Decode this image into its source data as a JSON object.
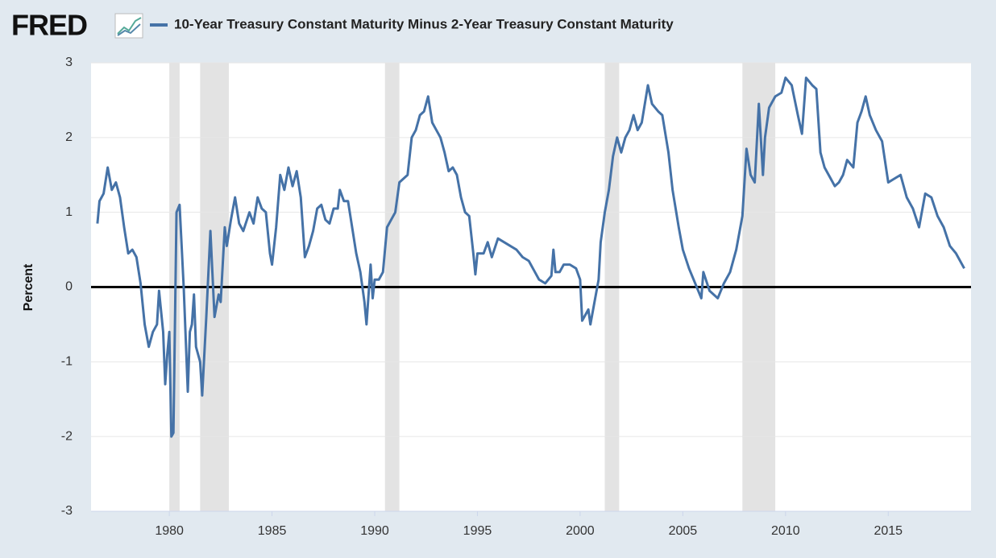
{
  "chart_data": {
    "type": "line",
    "logo": "FRED",
    "y_label": "Percent",
    "x": [
      1976.5,
      1976.6,
      1976.8,
      1977.0,
      1977.2,
      1977.4,
      1977.6,
      1977.8,
      1978.0,
      1978.2,
      1978.4,
      1978.6,
      1978.8,
      1979.0,
      1979.2,
      1979.4,
      1979.5,
      1979.7,
      1979.8,
      1979.9,
      1980.0,
      1980.1,
      1980.2,
      1980.35,
      1980.5,
      1980.7,
      1980.9,
      1981.0,
      1981.1,
      1981.2,
      1981.3,
      1981.5,
      1981.6,
      1981.8,
      1982.0,
      1982.2,
      1982.4,
      1982.5,
      1982.7,
      1982.8,
      1983.0,
      1983.2,
      1983.4,
      1983.6,
      1983.9,
      1984.1,
      1984.3,
      1984.5,
      1984.7,
      1984.9,
      1985.0,
      1985.2,
      1985.4,
      1985.6,
      1985.8,
      1986.0,
      1986.2,
      1986.4,
      1986.6,
      1986.8,
      1987.0,
      1987.2,
      1987.4,
      1987.6,
      1987.8,
      1988.0,
      1988.2,
      1988.3,
      1988.5,
      1988.7,
      1988.9,
      1989.1,
      1989.3,
      1989.5,
      1989.6,
      1989.8,
      1989.9,
      1990.0,
      1990.2,
      1990.4,
      1990.6,
      1990.8,
      1991.0,
      1991.2,
      1991.4,
      1991.6,
      1991.8,
      1992.0,
      1992.2,
      1992.4,
      1992.6,
      1992.8,
      1993.0,
      1993.2,
      1993.4,
      1993.6,
      1993.8,
      1994.0,
      1994.2,
      1994.4,
      1994.6,
      1994.8,
      1994.9,
      1995.0,
      1995.3,
      1995.5,
      1995.7,
      1996.0,
      1996.3,
      1996.6,
      1996.9,
      1997.2,
      1997.5,
      1997.8,
      1998.0,
      1998.3,
      1998.6,
      1998.7,
      1998.8,
      1999.0,
      1999.2,
      1999.5,
      1999.8,
      2000.0,
      2000.1,
      2000.4,
      2000.5,
      2000.7,
      2000.9,
      2001.0,
      2001.2,
      2001.4,
      2001.6,
      2001.8,
      2002.0,
      2002.2,
      2002.4,
      2002.6,
      2002.8,
      2003.0,
      2003.3,
      2003.5,
      2003.8,
      2004.0,
      2004.3,
      2004.5,
      2004.8,
      2005.0,
      2005.3,
      2005.6,
      2005.9,
      2006.0,
      2006.3,
      2006.7,
      2007.0,
      2007.3,
      2007.6,
      2007.9,
      2008.1,
      2008.3,
      2008.5,
      2008.7,
      2008.9,
      2009.0,
      2009.2,
      2009.5,
      2009.8,
      2010.0,
      2010.3,
      2010.6,
      2010.8,
      2011.0,
      2011.3,
      2011.5,
      2011.7,
      2011.9,
      2012.2,
      2012.4,
      2012.6,
      2012.8,
      2013.0,
      2013.3,
      2013.5,
      2013.7,
      2013.9,
      2014.1,
      2014.4,
      2014.7,
      2015.0,
      2015.3,
      2015.6,
      2015.9,
      2016.2,
      2016.5,
      2016.8,
      2017.1,
      2017.4,
      2017.7,
      2018.0,
      2018.3,
      2018.7
    ],
    "series": [
      {
        "name": "10-Year Treasury Constant Maturity Minus 2-Year Treasury Constant Maturity",
        "color": "#4572a7",
        "values": [
          0.85,
          1.15,
          1.25,
          1.6,
          1.3,
          1.4,
          1.2,
          0.8,
          0.45,
          0.5,
          0.4,
          0.05,
          -0.5,
          -0.8,
          -0.6,
          -0.5,
          -0.05,
          -0.6,
          -1.3,
          -0.9,
          -0.6,
          -2.0,
          -1.95,
          1.0,
          1.1,
          0.0,
          -1.4,
          -0.6,
          -0.5,
          -0.1,
          -0.8,
          -1.0,
          -1.45,
          -0.4,
          0.75,
          -0.4,
          -0.1,
          -0.2,
          0.8,
          0.55,
          0.9,
          1.2,
          0.85,
          0.75,
          1.0,
          0.85,
          1.2,
          1.05,
          1.0,
          0.45,
          0.3,
          0.8,
          1.5,
          1.3,
          1.6,
          1.35,
          1.55,
          1.2,
          0.4,
          0.55,
          0.75,
          1.05,
          1.1,
          0.9,
          0.85,
          1.05,
          1.05,
          1.3,
          1.15,
          1.15,
          0.8,
          0.45,
          0.2,
          -0.2,
          -0.5,
          0.3,
          -0.15,
          0.1,
          0.1,
          0.2,
          0.8,
          0.9,
          1.0,
          1.4,
          1.45,
          1.5,
          2.0,
          2.1,
          2.3,
          2.35,
          2.55,
          2.2,
          2.1,
          2.0,
          1.8,
          1.55,
          1.6,
          1.5,
          1.2,
          1.0,
          0.95,
          0.45,
          0.17,
          0.45,
          0.45,
          0.6,
          0.4,
          0.65,
          0.6,
          0.55,
          0.5,
          0.4,
          0.35,
          0.2,
          0.1,
          0.05,
          0.15,
          0.5,
          0.2,
          0.2,
          0.3,
          0.3,
          0.25,
          0.1,
          -0.45,
          -0.3,
          -0.5,
          -0.2,
          0.1,
          0.6,
          1.0,
          1.3,
          1.75,
          2.0,
          1.8,
          2.0,
          2.1,
          2.3,
          2.1,
          2.2,
          2.7,
          2.45,
          2.35,
          2.3,
          1.8,
          1.3,
          0.8,
          0.5,
          0.25,
          0.05,
          -0.15,
          0.2,
          -0.05,
          -0.15,
          0.05,
          0.2,
          0.5,
          0.95,
          1.85,
          1.5,
          1.4,
          2.45,
          1.5,
          2.0,
          2.4,
          2.55,
          2.6,
          2.8,
          2.7,
          2.3,
          2.05,
          2.8,
          2.7,
          2.65,
          1.8,
          1.6,
          1.45,
          1.35,
          1.4,
          1.5,
          1.7,
          1.6,
          2.2,
          2.35,
          2.55,
          2.3,
          2.1,
          1.95,
          1.4,
          1.45,
          1.5,
          1.2,
          1.05,
          0.8,
          1.25,
          1.2,
          0.95,
          0.8,
          0.55,
          0.45,
          0.25
        ]
      }
    ],
    "recessions": [
      [
        1980.0,
        1980.5
      ],
      [
        1981.5,
        1982.9
      ],
      [
        1990.5,
        1991.2
      ],
      [
        2001.2,
        2001.9
      ],
      [
        2007.9,
        2009.5
      ]
    ],
    "recession_color": "#e3e3e3",
    "xlim": [
      1976.19,
      2019.03
    ],
    "xticks": [
      1980,
      1985,
      1990,
      1995,
      2000,
      2005,
      2010,
      2015
    ],
    "ylim": [
      -3,
      3
    ],
    "yticks": [
      -3,
      -2,
      -1,
      0,
      1,
      2,
      3
    ],
    "grid": true,
    "zero_line": true
  }
}
